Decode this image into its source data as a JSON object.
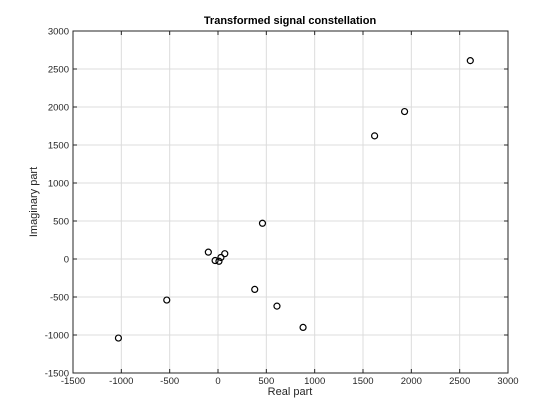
{
  "chart_data": {
    "type": "scatter",
    "title": "Transformed signal constellation",
    "xlabel": "Real part",
    "ylabel": "Imaginary part",
    "xlim": [
      -1500,
      3000
    ],
    "ylim": [
      -1500,
      3000
    ],
    "xticks": [
      -1500,
      -1000,
      -500,
      0,
      500,
      1000,
      1500,
      2000,
      2500,
      3000
    ],
    "yticks": [
      -1500,
      -1000,
      -500,
      0,
      500,
      1000,
      1500,
      2000,
      2500,
      3000
    ],
    "grid": true,
    "marker": "circle",
    "color": "#000000",
    "points": [
      {
        "x": -1030,
        "y": -1040
      },
      {
        "x": -530,
        "y": -540
      },
      {
        "x": -100,
        "y": 90
      },
      {
        "x": -30,
        "y": -20
      },
      {
        "x": 10,
        "y": -30
      },
      {
        "x": 30,
        "y": 20
      },
      {
        "x": 70,
        "y": 70
      },
      {
        "x": 380,
        "y": -400
      },
      {
        "x": 460,
        "y": 470
      },
      {
        "x": 610,
        "y": -620
      },
      {
        "x": 880,
        "y": -900
      },
      {
        "x": 1620,
        "y": 1620
      },
      {
        "x": 1930,
        "y": 1940
      },
      {
        "x": 2610,
        "y": 2610
      }
    ]
  }
}
